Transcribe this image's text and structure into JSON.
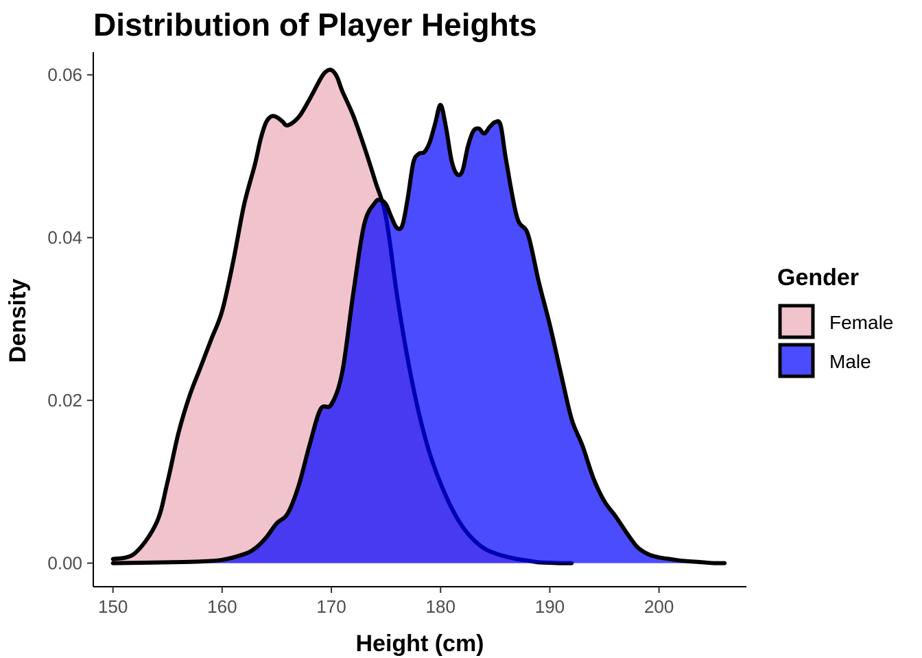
{
  "chart_data": {
    "type": "area",
    "title": "Distribution of Player Heights",
    "xlabel": "Height (cm)",
    "ylabel": "Density",
    "xlim": [
      148.2,
      208.0
    ],
    "ylim": [
      -0.0029,
      0.0628
    ],
    "x_ticks": [
      150,
      160,
      170,
      180,
      190,
      200
    ],
    "x_tick_labels": [
      "150",
      "160",
      "170",
      "180",
      "190",
      "200"
    ],
    "y_ticks": [
      0.0,
      0.02,
      0.04,
      0.06
    ],
    "y_tick_labels": [
      "0.00",
      "0.02",
      "0.04",
      "0.06"
    ],
    "grid": false,
    "legend": {
      "title": "Gender",
      "position": "right"
    },
    "series": [
      {
        "name": "Female",
        "color": "#f1c3cc",
        "opacity": 1.0,
        "x": [
          150,
          152,
          154,
          155,
          156,
          157,
          158,
          159,
          160,
          161,
          162,
          163,
          163.5,
          164,
          164.5,
          165,
          165.5,
          166,
          167,
          168,
          169,
          169.5,
          170,
          170.5,
          171,
          172,
          173,
          174,
          175,
          176,
          177,
          178,
          179,
          180,
          181,
          182,
          183,
          184,
          185,
          186,
          187,
          188,
          189,
          190,
          191,
          192
        ],
        "y": [
          0.0005,
          0.0012,
          0.005,
          0.01,
          0.016,
          0.0205,
          0.024,
          0.0275,
          0.031,
          0.037,
          0.044,
          0.049,
          0.052,
          0.0541,
          0.0549,
          0.0548,
          0.0543,
          0.0538,
          0.0548,
          0.057,
          0.0595,
          0.0604,
          0.0606,
          0.0598,
          0.058,
          0.055,
          0.0512,
          0.047,
          0.0425,
          0.033,
          0.025,
          0.0185,
          0.0135,
          0.0098,
          0.0068,
          0.0045,
          0.0029,
          0.0018,
          0.0012,
          0.0008,
          0.0005,
          0.0003,
          0.0001,
          5e-05,
          0.0,
          0.0
        ]
      },
      {
        "name": "Male",
        "color": "#0000ff",
        "opacity": 0.7,
        "x": [
          150,
          155,
          158,
          160,
          162,
          163,
          164,
          165,
          166,
          167,
          168,
          169,
          170,
          171,
          172,
          173,
          174,
          174.5,
          175,
          175.5,
          176,
          176.5,
          177,
          177.5,
          178,
          178.5,
          179,
          179.5,
          180,
          180.5,
          181,
          181.5,
          182,
          182.5,
          183,
          183.5,
          184,
          184.5,
          185,
          185.5,
          186,
          187,
          188,
          189,
          190,
          191,
          192,
          193,
          194,
          195,
          196,
          197,
          198,
          199,
          200,
          201,
          202,
          203,
          204,
          205,
          206
        ],
        "y": [
          0.0,
          0.0001,
          0.0002,
          0.0004,
          0.0011,
          0.0018,
          0.0031,
          0.0049,
          0.0061,
          0.0095,
          0.0145,
          0.0189,
          0.0195,
          0.0235,
          0.0331,
          0.0416,
          0.0443,
          0.0446,
          0.0441,
          0.0425,
          0.0412,
          0.0415,
          0.0449,
          0.0492,
          0.0503,
          0.0505,
          0.0517,
          0.054,
          0.0563,
          0.0535,
          0.0495,
          0.0478,
          0.0482,
          0.0512,
          0.0531,
          0.0534,
          0.0528,
          0.0536,
          0.0542,
          0.0538,
          0.0495,
          0.0425,
          0.0404,
          0.0345,
          0.0293,
          0.0234,
          0.0177,
          0.0144,
          0.0104,
          0.0076,
          0.0058,
          0.0038,
          0.002,
          0.0011,
          0.0007,
          0.0005,
          0.0003,
          0.0002,
          0.0001,
          0.0,
          0.0
        ]
      }
    ]
  }
}
